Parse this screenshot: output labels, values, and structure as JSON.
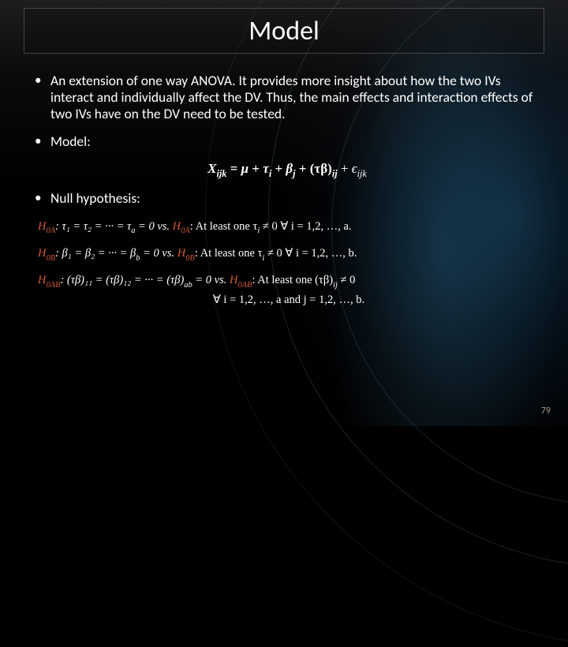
{
  "title": "Model",
  "bullets": {
    "intro": "An extension of one way ANOVA. It provides more insight about how the two IVs interact and individually affect the DV. Thus, the main effects and interaction effects of two IVs have on the DV need to be tested.",
    "model_label": "Model:",
    "null_label": "Null hypothesis:"
  },
  "equation": {
    "lhs": "X",
    "lhs_sub": "ijk",
    "mu": "μ",
    "tau": "τ",
    "tau_sub": "i",
    "beta": "β",
    "beta_sub": "j",
    "tb": "(τβ)",
    "tb_sub": "ij",
    "eps": "ϵ",
    "eps_sub": "ijk"
  },
  "hyp": {
    "h0a_l": "H",
    "h0a_ls": "0A",
    "row_a_lhs": ": τ₁ = τ₂ = ··· = τ",
    "row_a_lhs_end": " = 0 vs. ",
    "row_a_rhs": ": At least one τ",
    "row_a_tail": " ≠ 0 ∀ i = 1,2, …, a.",
    "h0b_l": "H",
    "h0b_ls": "0B",
    "row_b_lhs": ": β₁ = β₂ = ··· = β",
    "row_b_lhs_end": " = 0 vs. ",
    "row_b_rhs": ": At least one τ",
    "row_b_tail": " ≠ 0 ∀ i = 1,2, …, b.",
    "h0ab_l": "H",
    "h0ab_ls": "0AB",
    "row_ab_lhs": ": (τβ)₁₁ = (τβ)₁₂ = ··· = (τβ)",
    "row_ab_lhs_end": " = 0 vs. ",
    "row_ab_rhs": ": At least one (τβ)",
    "row_ab_tail1": " ≠ 0",
    "row_ab_tail2": "∀ i = 1,2, …, a and j = 1,2, …, b.",
    "sub_a": "a",
    "sub_b": "b",
    "sub_ab": "ab",
    "sub_i": "i",
    "sub_ij": "ij"
  },
  "page_number": "79",
  "colors": {
    "accent_red": "#d05a3a",
    "page_num": "#a89a88",
    "bg_black": "#000000",
    "border": "rgba(255,255,255,0.22)"
  }
}
